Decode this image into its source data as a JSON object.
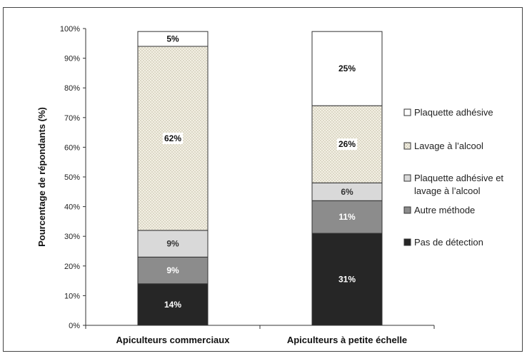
{
  "chart_data": {
    "type": "bar",
    "stacked": true,
    "ylabel": "Pourcentage de répondants (%)",
    "xlabel": "",
    "ylim": [
      0,
      100
    ],
    "y_ticks": [
      "0%",
      "10%",
      "20%",
      "30%",
      "40%",
      "50%",
      "60%",
      "70%",
      "80%",
      "90%",
      "100%"
    ],
    "categories": [
      "Apiculteurs commerciaux",
      "Apiculteurs à petite échelle"
    ],
    "series": [
      {
        "name": "Pas de détection",
        "values": [
          14,
          31
        ],
        "labels": [
          "14%",
          "31%"
        ],
        "color": "#262626",
        "text_color": "#ffffff",
        "pattern": "solid"
      },
      {
        "name": "Autre méthode",
        "values": [
          9,
          11
        ],
        "labels": [
          "9%",
          "11%"
        ],
        "color": "#8c8c8c",
        "text_color": "#ffffff",
        "pattern": "solid"
      },
      {
        "name": "Plaquette adhésive et lavage à l'alcool",
        "values": [
          9,
          6
        ],
        "labels": [
          "9%",
          "6%"
        ],
        "color": "#d9d9d9",
        "text_color": "#333333",
        "pattern": "solid"
      },
      {
        "name": "Lavage à l'alcool",
        "values": [
          62,
          26
        ],
        "labels": [
          "62%",
          "26%"
        ],
        "color": "#eeeadc",
        "text_color": "#111111",
        "pattern": "dots"
      },
      {
        "name": "Plaquette adhésive",
        "values": [
          5,
          25
        ],
        "labels": [
          "5%",
          "25%"
        ],
        "color": "#ffffff",
        "text_color": "#111111",
        "pattern": "solid"
      }
    ],
    "legend": {
      "position": "right",
      "items": [
        "Plaquette adhésive",
        "Lavage à l’alcool",
        "Plaquette adhésive et",
        "lavage à l’alcool",
        "Autre méthode",
        "Pas de détection"
      ]
    },
    "grid": false
  }
}
